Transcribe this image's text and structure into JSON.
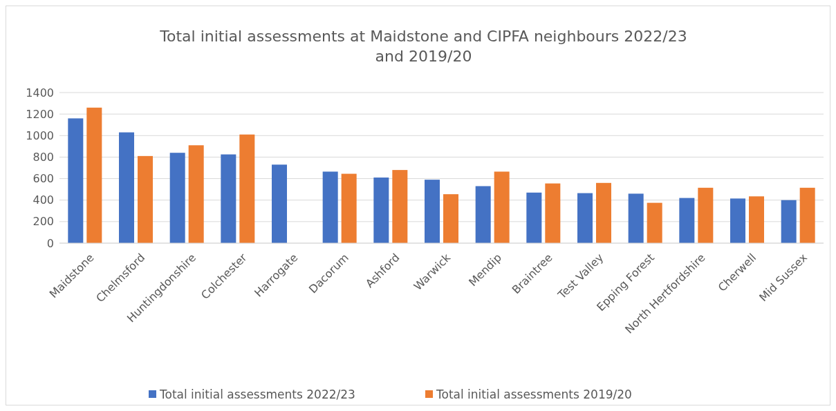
{
  "chart_data": {
    "type": "bar",
    "title": "Total initial assessments at Maidstone and CIPFA neighbours 2022/23 and 2019/20",
    "categories": [
      "Maidstone",
      "Chelmsford",
      "Huntingdonshire",
      "Colchester",
      "Harrogate",
      "Dacorum",
      "Ashford",
      "Warwick",
      "Mendip",
      "Braintree",
      "Test Valley",
      "Epping Forest",
      "North Hertfordshire",
      "Cherwell",
      "Mid Sussex"
    ],
    "series": [
      {
        "name": "Total initial assessments 2022/23",
        "color": "#4472c4",
        "values": [
          1160,
          1030,
          840,
          825,
          730,
          665,
          610,
          590,
          530,
          470,
          465,
          460,
          420,
          415,
          400
        ]
      },
      {
        "name": "Total initial assessments 2019/20",
        "color": "#ed7d31",
        "values": [
          1260,
          810,
          910,
          1010,
          null,
          645,
          680,
          455,
          665,
          555,
          560,
          375,
          515,
          435,
          515
        ]
      }
    ],
    "ylim": [
      0,
      1400
    ],
    "yticks": [
      0,
      200,
      400,
      600,
      800,
      1000,
      1200,
      1400
    ],
    "grid": "y",
    "legend": "bottom"
  }
}
